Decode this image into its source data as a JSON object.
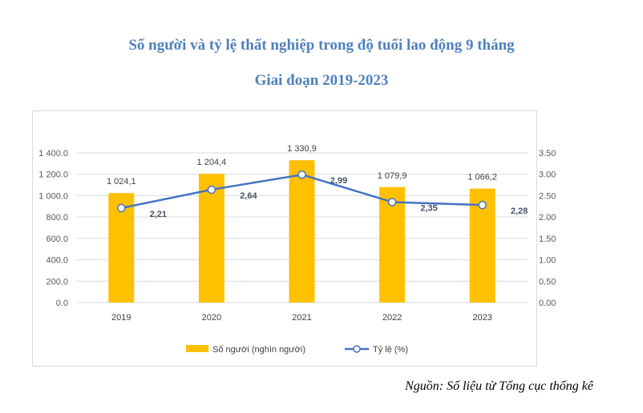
{
  "title_line1": "Số người và tỷ lệ thất nghiệp trong độ tuổi lao động 9 tháng",
  "title_line2": "Giai đoạn 2019-2023",
  "source": "Nguồn: Số liệu từ Tổng cục thống kê",
  "colors": {
    "bar": "#ffc000",
    "line": "#4472c4",
    "title": "#4f81bd",
    "label_line": "#44546a"
  },
  "chart_data": {
    "type": "bar+line",
    "categories": [
      "2019",
      "2020",
      "2021",
      "2022",
      "2023"
    ],
    "series": [
      {
        "name": "Số người (nghìn người)",
        "type": "bar",
        "axis": "left",
        "values": [
          1024.1,
          1204.4,
          1330.9,
          1079.9,
          1066.2
        ],
        "labels": [
          "1 024,1",
          "1 204,4",
          "1 330,9",
          "1 079,9",
          "1 066,2"
        ]
      },
      {
        "name": "Tỷ lệ (%)",
        "type": "line",
        "axis": "right",
        "values": [
          2.21,
          2.64,
          2.99,
          2.35,
          2.28
        ],
        "labels": [
          "2,21",
          "2,64",
          "2,99",
          "2,35",
          "2,28"
        ]
      }
    ],
    "y_left": {
      "min": 0,
      "max": 1400,
      "ticks": [
        "0.0",
        "200.0",
        "400.0",
        "600.0",
        "800.0",
        "1 000.0",
        "1 200.0",
        "1 400.0"
      ]
    },
    "y_right": {
      "min": 0,
      "max": 3.5,
      "ticks": [
        "0.00",
        "0.50",
        "1.00",
        "1.50",
        "2.00",
        "2.50",
        "3.00",
        "3.50"
      ]
    },
    "grid": true,
    "legend": "bottom"
  }
}
